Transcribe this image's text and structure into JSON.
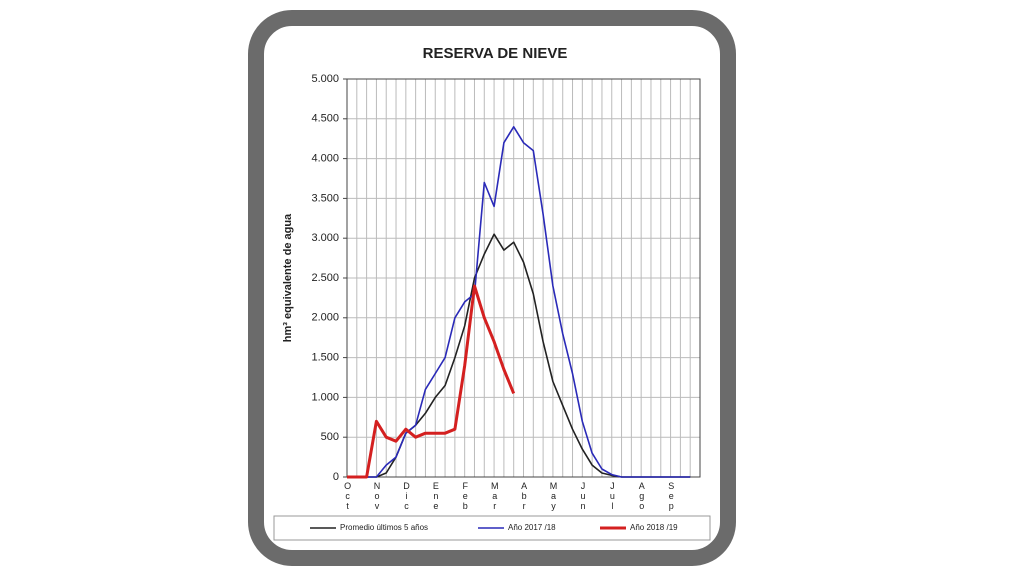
{
  "chart_data": {
    "type": "line",
    "title": "RESERVA DE NIEVE",
    "y_label": "hm³ equivalente de agua",
    "categories": [
      "Oct",
      null,
      null,
      "Nov",
      null,
      null,
      "Dic",
      null,
      null,
      "Ene",
      null,
      null,
      "Feb",
      null,
      null,
      "Mar",
      null,
      null,
      "Abr",
      null,
      null,
      "May",
      null,
      null,
      "Jun",
      null,
      null,
      "Jul",
      null,
      null,
      "Ago",
      null,
      null,
      "Sep",
      null,
      null
    ],
    "series": [
      {
        "name": "Promedio últimos 5 años",
        "color": "#222222",
        "values": [
          0,
          0,
          0,
          0,
          50,
          250,
          550,
          650,
          800,
          1000,
          1150,
          1500,
          1900,
          2500,
          2800,
          3050,
          2850,
          2950,
          2700,
          2300,
          1700,
          1200,
          900,
          600,
          350,
          150,
          50,
          20,
          0,
          0,
          0,
          0,
          0,
          0,
          0,
          0
        ]
      },
      {
        "name": "Año 2017 /18",
        "color": "#2a2ab8",
        "values": [
          0,
          0,
          0,
          0,
          150,
          250,
          550,
          650,
          1100,
          1300,
          1500,
          2000,
          2200,
          2300,
          3700,
          3400,
          4200,
          4400,
          4200,
          4100,
          3300,
          2400,
          1800,
          1300,
          700,
          300,
          100,
          30,
          0,
          0,
          0,
          0,
          0,
          0,
          0,
          0
        ]
      },
      {
        "name": "Año 2018 /19",
        "color": "#d42020",
        "values": [
          0,
          0,
          0,
          700,
          500,
          450,
          600,
          500,
          550,
          550,
          550,
          600,
          1400,
          2400,
          2000,
          1700,
          1350,
          1050,
          null,
          null,
          null,
          null,
          null,
          null,
          null,
          null,
          null,
          null,
          null,
          null,
          null,
          null,
          null,
          null,
          null,
          null
        ]
      }
    ],
    "ylim": [
      0,
      5000
    ],
    "yticks": [
      0,
      500,
      {
        "value": 1000,
        "label": "1.000"
      },
      {
        "value": 1500,
        "label": "1.500"
      },
      {
        "value": 2000,
        "label": "2.000"
      },
      {
        "value": 2500,
        "label": "2.500"
      },
      {
        "value": 3000,
        "label": "3.000"
      },
      {
        "value": 3500,
        "label": "3.500"
      },
      {
        "value": 4000,
        "label": "4.000"
      },
      {
        "value": 4500,
        "label": "4.500"
      },
      {
        "value": 5000,
        "label": "5.000"
      }
    ],
    "grid": true
  }
}
